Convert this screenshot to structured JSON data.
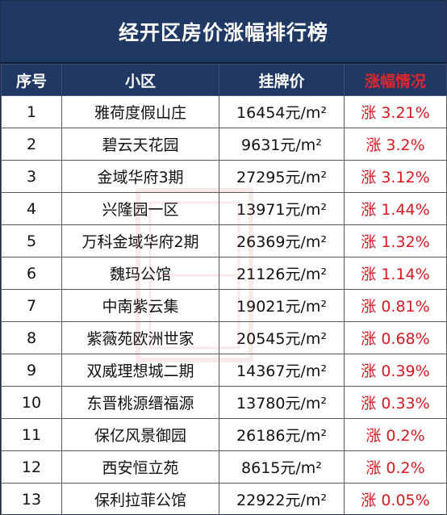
{
  "title": "经开区房价涨幅排行榜",
  "colors": {
    "header_bg": "#1f3864",
    "header_text": "#ffffff",
    "rise_text": "#d71a20"
  },
  "headers": {
    "rank": "序号",
    "community": "小区",
    "price": "挂牌价",
    "change": "涨幅情况"
  },
  "rows": [
    {
      "rank": "1",
      "name": "雅荷度假山庄",
      "price": "16454元/m²",
      "change": "涨 3.21%"
    },
    {
      "rank": "2",
      "name": "碧云天花园",
      "price": "9631元/m²",
      "change": "涨 3.2%"
    },
    {
      "rank": "3",
      "name": "金域华府3期",
      "price": "27295元/m²",
      "change": "涨 3.12%"
    },
    {
      "rank": "4",
      "name": "兴隆园一区",
      "price": "13971元/m²",
      "change": "涨 1.44%"
    },
    {
      "rank": "5",
      "name": "万科金域华府2期",
      "price": "26369元/m²",
      "change": "涨 1.32%"
    },
    {
      "rank": "6",
      "name": "魏玛公馆",
      "price": "21126元/m²",
      "change": "涨 1.14%"
    },
    {
      "rank": "7",
      "name": "中南紫云集",
      "price": "19021元/m²",
      "change": "涨 0.81%"
    },
    {
      "rank": "8",
      "name": "紫薇苑欧洲世家",
      "price": "20545元/m²",
      "change": "涨 0.68%"
    },
    {
      "rank": "9",
      "name": "双威理想城二期",
      "price": "14367元/m²",
      "change": "涨 0.39%"
    },
    {
      "rank": "10",
      "name": "东晋桃源缙福源",
      "price": "13780元/m²",
      "change": "涨 0.33%"
    },
    {
      "rank": "11",
      "name": "保亿风景御园",
      "price": "26186元/m²",
      "change": "涨 0.2%"
    },
    {
      "rank": "12",
      "name": "西安恒立苑",
      "price": "8615元/m²",
      "change": "涨 0.2%"
    },
    {
      "rank": "13",
      "name": "保利拉菲公馆",
      "price": "22922元/m²",
      "change": "涨 0.05%"
    }
  ]
}
